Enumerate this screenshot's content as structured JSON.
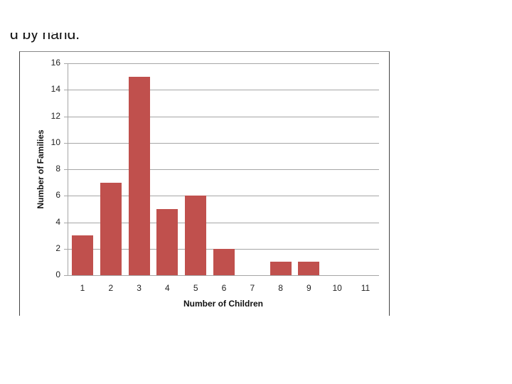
{
  "page": {
    "clipped_caption": "d by hand."
  },
  "chart_data": {
    "type": "bar",
    "title": "",
    "xlabel": "Number of Children",
    "ylabel": "Number of Families",
    "categories": [
      "1",
      "2",
      "3",
      "4",
      "5",
      "6",
      "7",
      "8",
      "9",
      "10",
      "11"
    ],
    "values": [
      3,
      7,
      15,
      5,
      6,
      2,
      0,
      1,
      1,
      0,
      0
    ],
    "ylim": [
      0,
      16
    ],
    "yticks": [
      0,
      2,
      4,
      6,
      8,
      10,
      12,
      14,
      16
    ],
    "grid": true,
    "legend": null,
    "bar_color": "#c0504d",
    "grid_color": "#a6a6a6"
  }
}
